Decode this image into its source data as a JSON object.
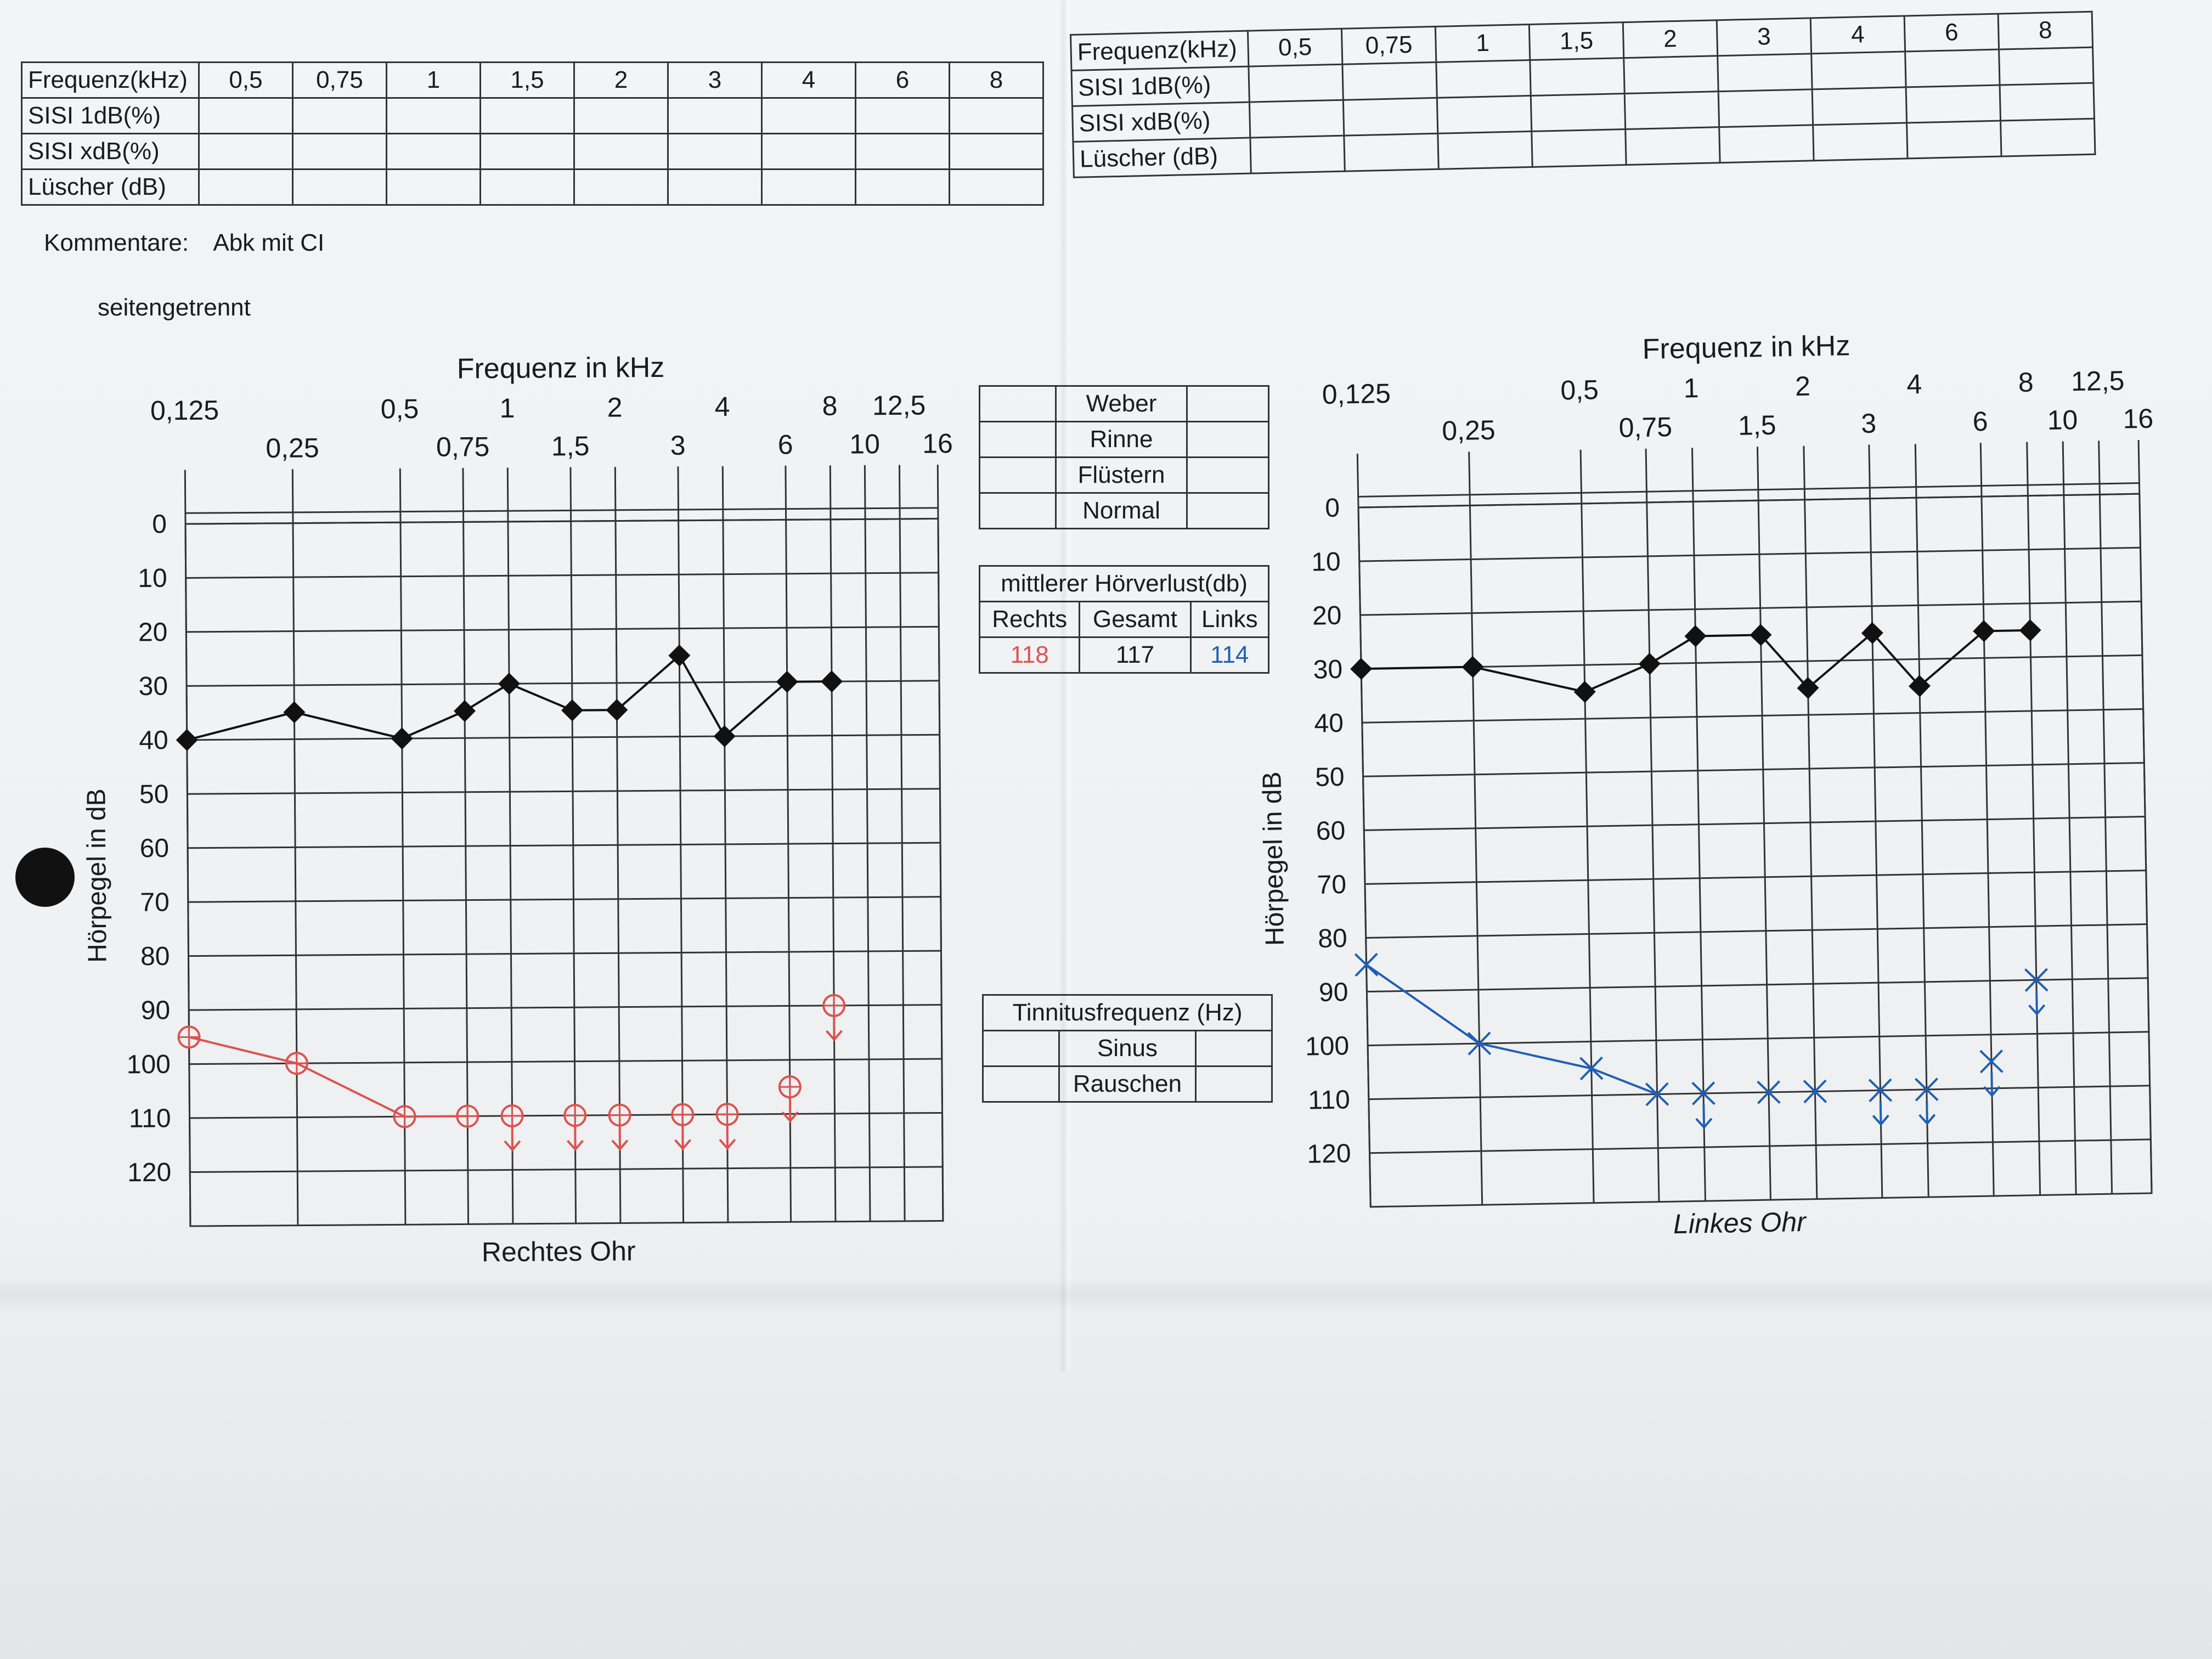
{
  "sisi_table": {
    "header": "Frequenz(kHz)",
    "freqs": [
      "0,5",
      "0,75",
      "1",
      "1,5",
      "2",
      "3",
      "4",
      "6",
      "8"
    ],
    "rows": [
      "SISI 1dB(%)",
      "SISI xdB(%)",
      "Lüscher (dB)"
    ]
  },
  "comments": {
    "label": "Kommentare:",
    "value": "Abk mit CI",
    "line2": "seitengetrennt"
  },
  "weber_table": [
    "Weber",
    "Rinne",
    "Flüstern",
    "Normal"
  ],
  "mean_loss": {
    "title": "mittlerer Hörverlust(db)",
    "headers": [
      "Rechts",
      "Gesamt",
      "Links"
    ],
    "values": [
      "118",
      "117",
      "114"
    ]
  },
  "tinnitus_table": [
    "Tinnitusfrequenz (Hz)",
    "Sinus",
    "Rauschen"
  ],
  "colors": {
    "right": "#d9534f",
    "left": "#1f5fb4",
    "bone": "#111111"
  },
  "chart_data": [
    {
      "type": "line",
      "title": "Frequenz in kHz",
      "xlabel": "Rechtes Ohr",
      "ylabel": "Hörpegel in dB",
      "x_scale": "log",
      "x_tick_labels": [
        "0,125",
        "0,25",
        "0,5",
        "0,75",
        "1",
        "1,5",
        "2",
        "3",
        "4",
        "6",
        "8",
        "10",
        "12,5",
        "16"
      ],
      "y_tick_labels": [
        "0",
        "10",
        "20",
        "30",
        "40",
        "50",
        "60",
        "70",
        "80",
        "90",
        "100",
        "110",
        "120"
      ],
      "ylim": [
        0,
        130
      ],
      "y_inverted": true,
      "series": [
        {
          "marker": "diamond",
          "color": "#111111",
          "x": [
            0.125,
            0.25,
            0.5,
            0.75,
            1,
            1.5,
            2,
            3,
            4,
            6,
            8
          ],
          "y": [
            40,
            35,
            40,
            35,
            30,
            35,
            35,
            25,
            40,
            30,
            30
          ],
          "no_response": [
            false,
            false,
            false,
            false,
            false,
            false,
            false,
            false,
            false,
            false,
            false
          ],
          "connected": [
            true,
            true,
            true,
            true,
            true,
            true,
            true,
            true,
            true,
            true,
            true
          ]
        },
        {
          "marker": "circle",
          "color": "#d9534f",
          "x": [
            0.125,
            0.25,
            0.5,
            0.75,
            1,
            1.5,
            2,
            3,
            4,
            6,
            8
          ],
          "y": [
            95,
            100,
            110,
            110,
            110,
            110,
            110,
            110,
            110,
            105,
            90
          ],
          "no_response": [
            false,
            false,
            false,
            false,
            true,
            true,
            true,
            true,
            true,
            true,
            true
          ],
          "connected": [
            true,
            true,
            true,
            true,
            false,
            false,
            false,
            false,
            false,
            false,
            false
          ]
        }
      ]
    },
    {
      "type": "line",
      "title": "Frequenz in kHz",
      "xlabel": "Linkes Ohr",
      "ylabel": "Hörpegel in dB",
      "x_scale": "log",
      "x_tick_labels": [
        "0,125",
        "0,25",
        "0,5",
        "0,75",
        "1",
        "1,5",
        "2",
        "3",
        "4",
        "6",
        "8",
        "10",
        "12,5",
        "16"
      ],
      "y_tick_labels": [
        "0",
        "10",
        "20",
        "30",
        "40",
        "50",
        "60",
        "70",
        "80",
        "90",
        "100",
        "110",
        "120"
      ],
      "ylim": [
        0,
        130
      ],
      "y_inverted": true,
      "series": [
        {
          "marker": "diamond",
          "color": "#111111",
          "x": [
            0.125,
            0.25,
            0.5,
            0.75,
            1,
            1.5,
            2,
            3,
            4,
            6,
            8
          ],
          "y": [
            30,
            30,
            35,
            30,
            25,
            25,
            35,
            25,
            35,
            25,
            25
          ],
          "no_response": [
            false,
            false,
            false,
            false,
            false,
            false,
            false,
            false,
            false,
            false,
            false
          ],
          "connected": [
            true,
            true,
            true,
            true,
            true,
            true,
            true,
            true,
            true,
            true,
            true
          ]
        },
        {
          "marker": "cross",
          "color": "#1f5fb4",
          "x": [
            0.125,
            0.25,
            0.5,
            0.75,
            1,
            1.5,
            2,
            3,
            4,
            6,
            8
          ],
          "y": [
            85,
            100,
            105,
            110,
            110,
            110,
            110,
            110,
            110,
            105,
            90
          ],
          "no_response": [
            false,
            false,
            false,
            false,
            true,
            false,
            false,
            true,
            true,
            true,
            true
          ],
          "connected": [
            true,
            true,
            true,
            true,
            false,
            false,
            false,
            false,
            false,
            false,
            false
          ]
        }
      ]
    }
  ]
}
